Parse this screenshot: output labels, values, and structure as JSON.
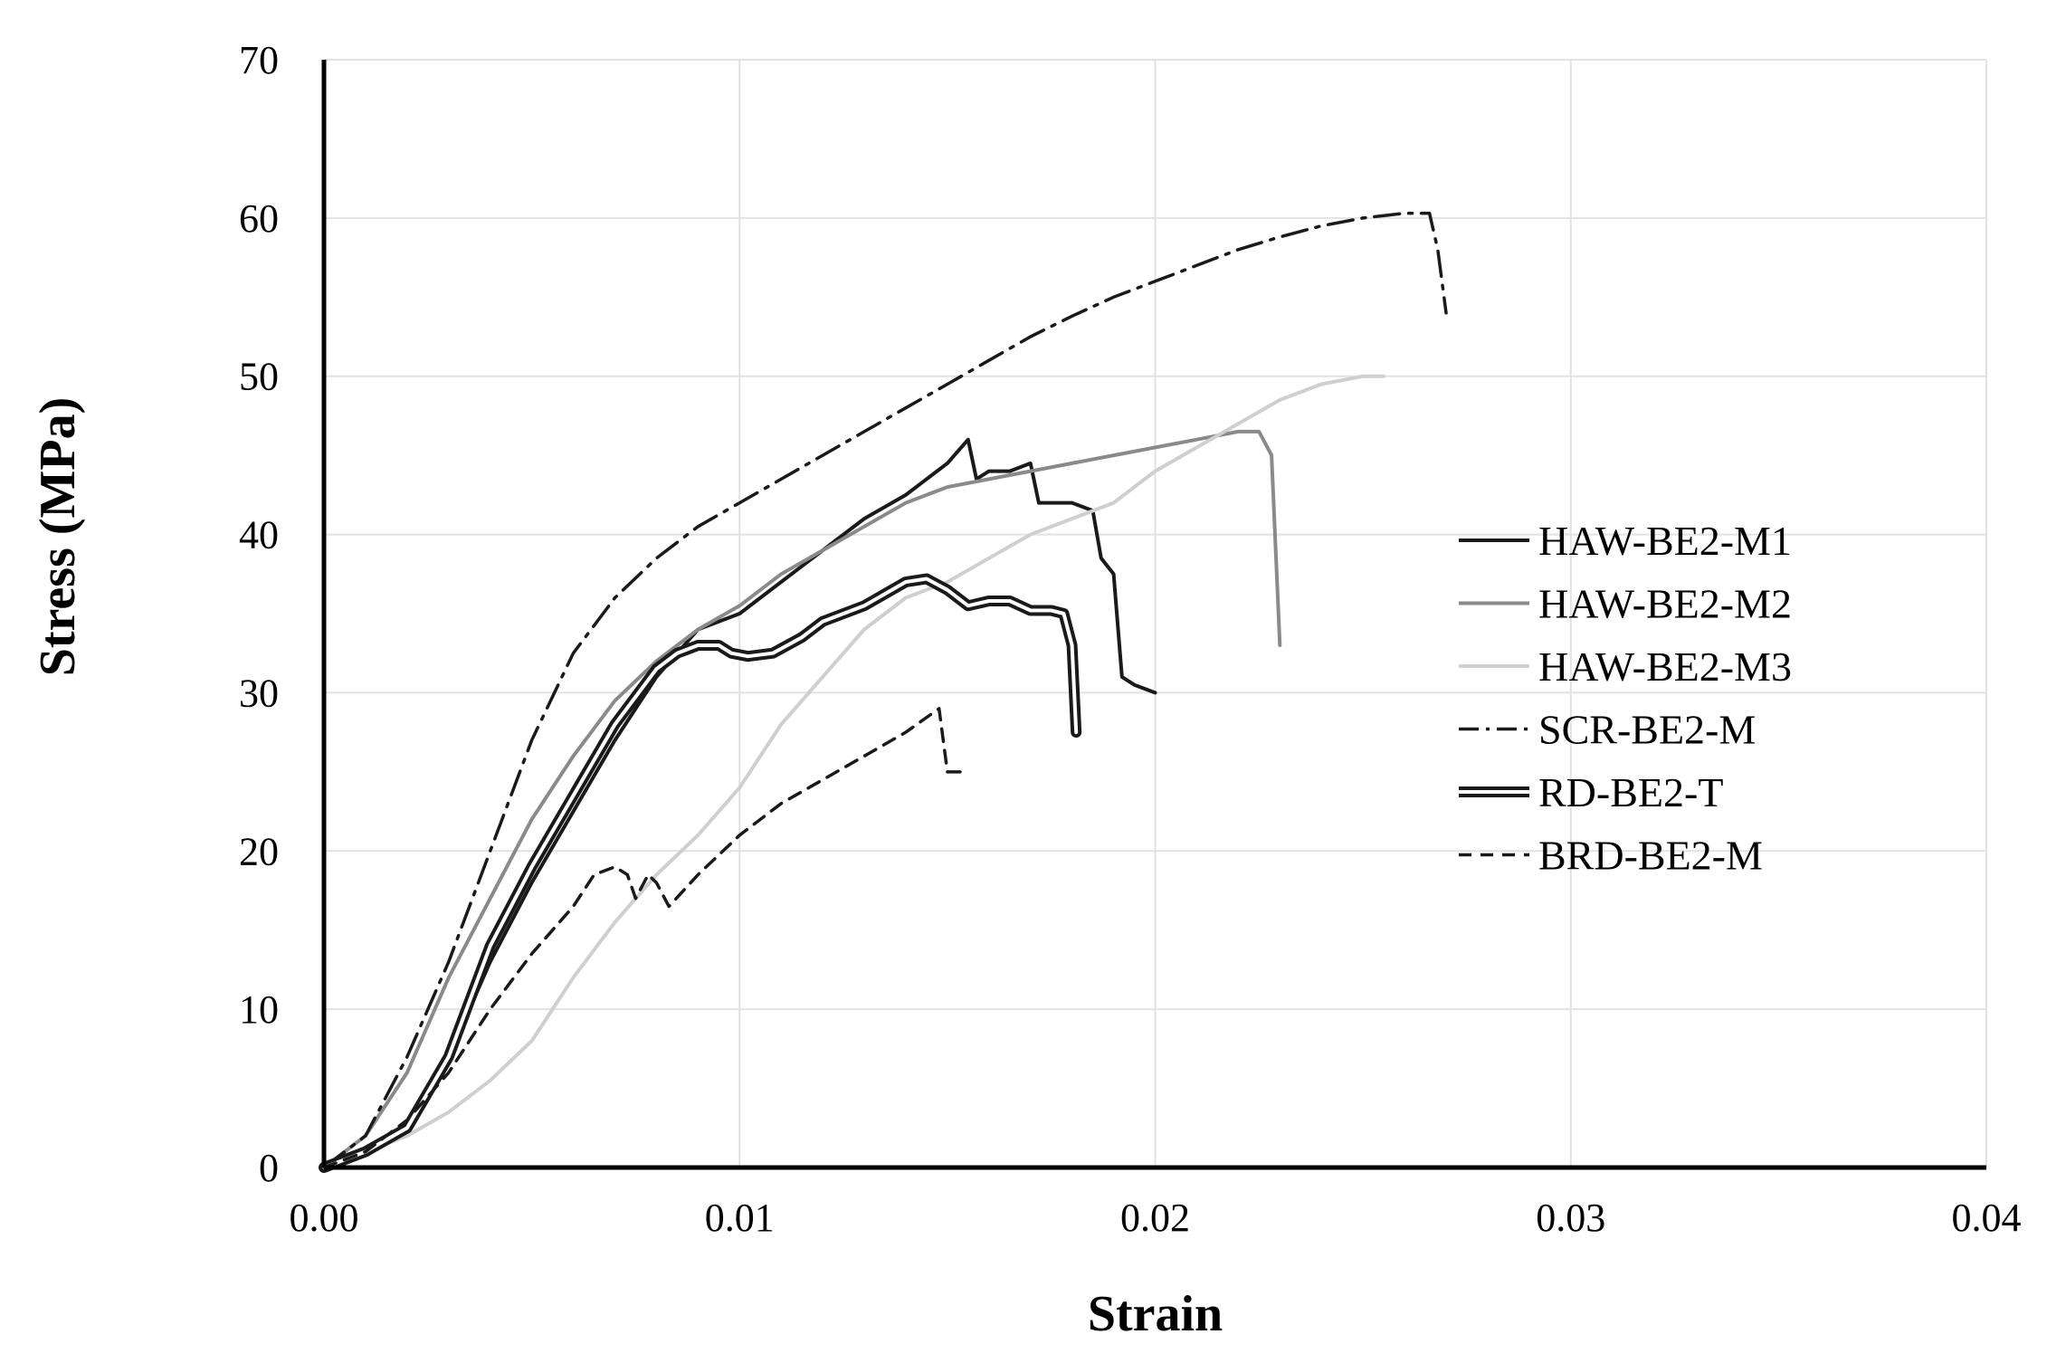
{
  "chart_data": {
    "type": "line",
    "title": "",
    "xlabel": "Strain",
    "ylabel": "Stress (MPa)",
    "xlim": [
      0,
      0.04
    ],
    "ylim": [
      0,
      70
    ],
    "xticks": [
      0.0,
      0.01,
      0.02,
      0.03,
      0.04
    ],
    "xtick_labels": [
      "0.00",
      "0.01",
      "0.02",
      "0.03",
      "0.04"
    ],
    "yticks": [
      0,
      10,
      20,
      30,
      40,
      50,
      60,
      70
    ],
    "ytick_labels": [
      "0",
      "10",
      "20",
      "30",
      "40",
      "50",
      "60",
      "70"
    ],
    "grid": true,
    "legend_position": "right",
    "series": [
      {
        "name": "HAW-BE2-M1",
        "style": "solid-dark",
        "color": "#1a1a1a",
        "points": [
          [
            0,
            0
          ],
          [
            0.001,
            1
          ],
          [
            0.002,
            2.5
          ],
          [
            0.003,
            7
          ],
          [
            0.004,
            13
          ],
          [
            0.005,
            18
          ],
          [
            0.006,
            22.5
          ],
          [
            0.007,
            27
          ],
          [
            0.008,
            31
          ],
          [
            0.009,
            34
          ],
          [
            0.01,
            35
          ],
          [
            0.011,
            37
          ],
          [
            0.012,
            39
          ],
          [
            0.013,
            41
          ],
          [
            0.014,
            42.5
          ],
          [
            0.015,
            44.5
          ],
          [
            0.0155,
            46
          ],
          [
            0.0157,
            43.5
          ],
          [
            0.016,
            44
          ],
          [
            0.0165,
            44
          ],
          [
            0.017,
            44.5
          ],
          [
            0.0172,
            42
          ],
          [
            0.018,
            42
          ],
          [
            0.0185,
            41.5
          ],
          [
            0.0187,
            38.5
          ],
          [
            0.019,
            37.5
          ],
          [
            0.0192,
            31
          ],
          [
            0.0195,
            30.5
          ],
          [
            0.02,
            30
          ]
        ]
      },
      {
        "name": "HAW-BE2-M2",
        "style": "solid-medium",
        "color": "#8a8a8a",
        "points": [
          [
            0,
            0
          ],
          [
            0.001,
            2
          ],
          [
            0.002,
            6
          ],
          [
            0.003,
            12
          ],
          [
            0.004,
            17
          ],
          [
            0.005,
            22
          ],
          [
            0.006,
            26
          ],
          [
            0.007,
            29.5
          ],
          [
            0.008,
            32
          ],
          [
            0.009,
            34
          ],
          [
            0.01,
            35.5
          ],
          [
            0.011,
            37.5
          ],
          [
            0.012,
            39
          ],
          [
            0.013,
            40.5
          ],
          [
            0.014,
            42
          ],
          [
            0.015,
            43
          ],
          [
            0.016,
            43.5
          ],
          [
            0.017,
            44
          ],
          [
            0.018,
            44.5
          ],
          [
            0.019,
            45
          ],
          [
            0.02,
            45.5
          ],
          [
            0.021,
            46
          ],
          [
            0.022,
            46.5
          ],
          [
            0.0225,
            46.5
          ],
          [
            0.0228,
            45
          ],
          [
            0.023,
            33
          ]
        ]
      },
      {
        "name": "HAW-BE2-M3",
        "style": "solid-light",
        "color": "#cfcfcf",
        "points": [
          [
            0,
            0
          ],
          [
            0.001,
            1
          ],
          [
            0.002,
            2
          ],
          [
            0.003,
            3.5
          ],
          [
            0.004,
            5.5
          ],
          [
            0.005,
            8
          ],
          [
            0.006,
            12
          ],
          [
            0.007,
            15.5
          ],
          [
            0.008,
            18.5
          ],
          [
            0.009,
            21
          ],
          [
            0.01,
            24
          ],
          [
            0.011,
            28
          ],
          [
            0.012,
            31
          ],
          [
            0.013,
            34
          ],
          [
            0.014,
            36
          ],
          [
            0.015,
            37
          ],
          [
            0.016,
            38.5
          ],
          [
            0.017,
            40
          ],
          [
            0.018,
            41
          ],
          [
            0.019,
            42
          ],
          [
            0.02,
            44
          ],
          [
            0.021,
            45.5
          ],
          [
            0.022,
            47
          ],
          [
            0.023,
            48.5
          ],
          [
            0.024,
            49.5
          ],
          [
            0.025,
            50
          ],
          [
            0.0255,
            50
          ]
        ]
      },
      {
        "name": "SCR-BE2-M",
        "style": "dash-dot",
        "color": "#1a1a1a",
        "points": [
          [
            0,
            0
          ],
          [
            0.001,
            2
          ],
          [
            0.002,
            7
          ],
          [
            0.003,
            13
          ],
          [
            0.004,
            20
          ],
          [
            0.005,
            27
          ],
          [
            0.006,
            32.5
          ],
          [
            0.007,
            36
          ],
          [
            0.008,
            38.5
          ],
          [
            0.009,
            40.5
          ],
          [
            0.01,
            42
          ],
          [
            0.011,
            43.5
          ],
          [
            0.012,
            45
          ],
          [
            0.013,
            46.5
          ],
          [
            0.014,
            48
          ],
          [
            0.015,
            49.5
          ],
          [
            0.016,
            51
          ],
          [
            0.017,
            52.5
          ],
          [
            0.018,
            53.8
          ],
          [
            0.019,
            55
          ],
          [
            0.02,
            56
          ],
          [
            0.021,
            57
          ],
          [
            0.022,
            58
          ],
          [
            0.023,
            58.8
          ],
          [
            0.024,
            59.5
          ],
          [
            0.025,
            60
          ],
          [
            0.026,
            60.3
          ],
          [
            0.0266,
            60.3
          ],
          [
            0.0268,
            58
          ],
          [
            0.027,
            54
          ]
        ]
      },
      {
        "name": "RD-BE2-T",
        "style": "double",
        "color": "#1a1a1a",
        "points": [
          [
            0,
            0
          ],
          [
            0.001,
            1
          ],
          [
            0.002,
            2.5
          ],
          [
            0.003,
            7
          ],
          [
            0.004,
            14
          ],
          [
            0.005,
            19
          ],
          [
            0.006,
            23.5
          ],
          [
            0.007,
            28
          ],
          [
            0.008,
            31.5
          ],
          [
            0.0085,
            32.5
          ],
          [
            0.009,
            33
          ],
          [
            0.0095,
            33
          ],
          [
            0.0098,
            32.5
          ],
          [
            0.0102,
            32.3
          ],
          [
            0.0108,
            32.5
          ],
          [
            0.0115,
            33.5
          ],
          [
            0.012,
            34.5
          ],
          [
            0.013,
            35.5
          ],
          [
            0.014,
            37
          ],
          [
            0.0145,
            37.2
          ],
          [
            0.015,
            36.5
          ],
          [
            0.0155,
            35.5
          ],
          [
            0.016,
            35.8
          ],
          [
            0.0165,
            35.8
          ],
          [
            0.017,
            35.2
          ],
          [
            0.0175,
            35.2
          ],
          [
            0.0178,
            35
          ],
          [
            0.018,
            33
          ],
          [
            0.0181,
            27.5
          ]
        ]
      },
      {
        "name": "BRD-BE2-M",
        "style": "dashed",
        "color": "#1a1a1a",
        "points": [
          [
            0,
            0
          ],
          [
            0.001,
            1
          ],
          [
            0.002,
            3
          ],
          [
            0.003,
            6
          ],
          [
            0.004,
            10
          ],
          [
            0.005,
            13.5
          ],
          [
            0.006,
            16.5
          ],
          [
            0.0065,
            18.5
          ],
          [
            0.007,
            19
          ],
          [
            0.0073,
            18.5
          ],
          [
            0.0075,
            17
          ],
          [
            0.0078,
            18.5
          ],
          [
            0.008,
            18
          ],
          [
            0.0083,
            16.5
          ],
          [
            0.009,
            18.5
          ],
          [
            0.01,
            21
          ],
          [
            0.011,
            23
          ],
          [
            0.012,
            24.5
          ],
          [
            0.013,
            26
          ],
          [
            0.014,
            27.5
          ],
          [
            0.0148,
            29
          ],
          [
            0.015,
            25
          ],
          [
            0.0155,
            25
          ]
        ]
      }
    ]
  }
}
